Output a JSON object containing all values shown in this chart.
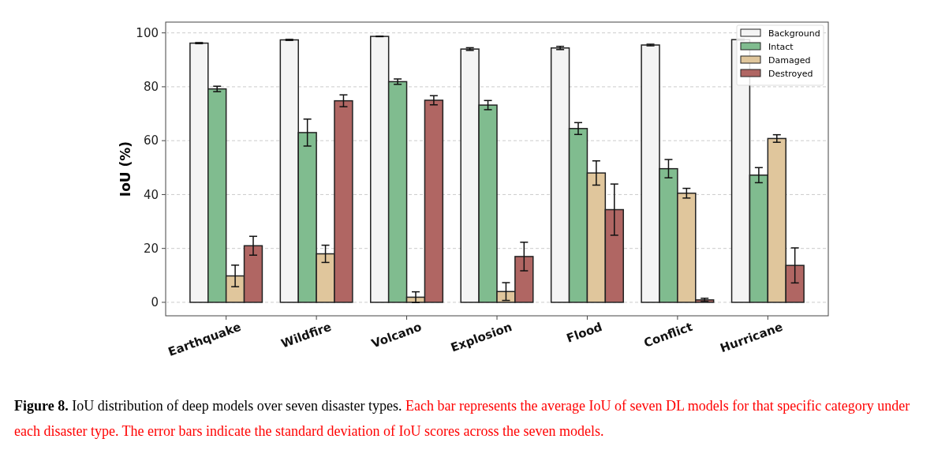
{
  "chart_data": {
    "type": "bar",
    "ylabel": "IoU (%)",
    "categories": [
      "Earthquake",
      "Wildfire",
      "Volcano",
      "Explosion",
      "Flood",
      "Conflict",
      "Hurricane"
    ],
    "series": [
      {
        "name": "Background",
        "color": "#f4f4f4",
        "values": [
          96.2,
          97.4,
          98.7,
          94,
          94.4,
          95.5,
          97.5
        ],
        "errors": [
          0.2,
          0.2,
          0.1,
          0.5,
          0.6,
          0.3,
          0.2
        ]
      },
      {
        "name": "Intact",
        "color": "#80bc8f",
        "values": [
          79.2,
          63,
          81.9,
          73.2,
          64.5,
          49.6,
          47.2
        ],
        "errors": [
          1,
          5,
          1,
          1.7,
          2.2,
          3.4,
          2.8
        ]
      },
      {
        "name": "Damaged",
        "color": "#e0c69c",
        "values": [
          9.8,
          18,
          1.9,
          4,
          48,
          40.5,
          60.8
        ],
        "errors": [
          4,
          3.2,
          2,
          3.3,
          4.5,
          1.8,
          1.4
        ]
      },
      {
        "name": "Destroyed",
        "color": "#b06663",
        "values": [
          21,
          74.8,
          75,
          17,
          34.4,
          0.9,
          13.7
        ],
        "errors": [
          3.5,
          2.2,
          1.7,
          5.3,
          9.5,
          0.6,
          6.5
        ]
      }
    ],
    "ylim": [
      -5,
      104
    ],
    "yticks": [
      0,
      20,
      40,
      60,
      80,
      100
    ],
    "grid": "y",
    "legend": "top right",
    "annotations": [
      "Figure 8. IoU distribution of deep models over seven disaster types.",
      "Each bar represents the average IoU of seven DL models for that specific category under each disaster type. The error bars indicate the standard deviation of IoU scores across the seven models."
    ]
  }
}
